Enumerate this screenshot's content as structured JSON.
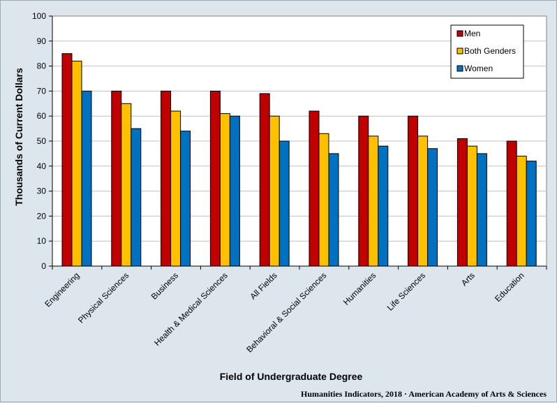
{
  "chart_data": {
    "type": "bar",
    "title": "",
    "xlabel": "Field of Undergraduate Degree",
    "ylabel": "Thousands of Current Dollars",
    "ylim": [
      0,
      100
    ],
    "yticks": [
      0,
      10,
      20,
      30,
      40,
      50,
      60,
      70,
      80,
      90,
      100
    ],
    "grid": "horizontal",
    "legend_position": "top-right",
    "categories": [
      "Engineering",
      "Physical Sciences",
      "Business",
      "Health & Medical Sciences",
      "All Fields",
      "Behavioral & Social Sciences",
      "Humanities",
      "Life Sciences",
      "Arts",
      "Education"
    ],
    "series": [
      {
        "name": "Men",
        "color": "#c00000",
        "values": [
          85,
          70,
          70,
          70,
          69,
          62,
          60,
          60,
          51,
          50
        ]
      },
      {
        "name": "Both Genders",
        "color": "#ffc000",
        "values": [
          82,
          65,
          62,
          61,
          60,
          53,
          52,
          52,
          48,
          44
        ]
      },
      {
        "name": "Women",
        "color": "#0070c0",
        "values": [
          70,
          55,
          54,
          60,
          50,
          45,
          48,
          47,
          45,
          42
        ]
      }
    ]
  },
  "credit": "Humanities Indicators, 2018 · American Academy of Arts & Sciences"
}
